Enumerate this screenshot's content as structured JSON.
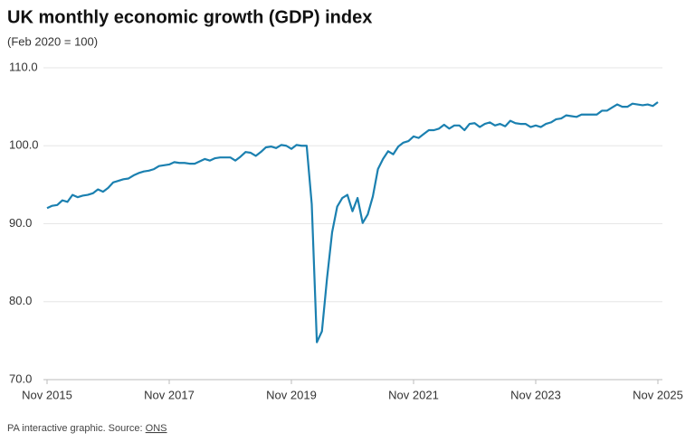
{
  "chart_data": {
    "type": "line",
    "title": "UK monthly economic growth (GDP) index",
    "subtitle": "(Feb 2020 = 100)",
    "source": {
      "text": "PA interactive graphic. Source:",
      "link": "ONS"
    },
    "x": [
      "2015-11",
      "2015-12",
      "2016-01",
      "2016-02",
      "2016-03",
      "2016-04",
      "2016-05",
      "2016-06",
      "2016-07",
      "2016-08",
      "2016-09",
      "2016-10",
      "2016-11",
      "2016-12",
      "2017-01",
      "2017-02",
      "2017-03",
      "2017-04",
      "2017-05",
      "2017-06",
      "2017-07",
      "2017-08",
      "2017-09",
      "2017-10",
      "2017-11",
      "2017-12",
      "2018-01",
      "2018-02",
      "2018-03",
      "2018-04",
      "2018-05",
      "2018-06",
      "2018-07",
      "2018-08",
      "2018-09",
      "2018-10",
      "2018-11",
      "2018-12",
      "2019-01",
      "2019-02",
      "2019-03",
      "2019-04",
      "2019-05",
      "2019-06",
      "2019-07",
      "2019-08",
      "2019-09",
      "2019-10",
      "2019-11",
      "2019-12",
      "2020-01",
      "2020-02",
      "2020-03",
      "2020-04",
      "2020-05",
      "2020-06",
      "2020-07",
      "2020-08",
      "2020-09",
      "2020-10",
      "2020-11",
      "2020-12",
      "2021-01",
      "2021-02",
      "2021-03",
      "2021-04",
      "2021-05",
      "2021-06",
      "2021-07",
      "2021-08",
      "2021-09",
      "2021-10",
      "2021-11",
      "2021-12",
      "2022-01",
      "2022-02",
      "2022-03",
      "2022-04",
      "2022-05",
      "2022-06",
      "2022-07",
      "2022-08",
      "2022-09",
      "2022-10",
      "2022-11",
      "2022-12",
      "2023-01",
      "2023-02",
      "2023-03",
      "2023-04",
      "2023-05",
      "2023-06",
      "2023-07",
      "2023-08",
      "2023-09",
      "2023-10",
      "2023-11",
      "2023-12",
      "2024-01",
      "2024-02",
      "2024-03",
      "2024-04",
      "2024-05",
      "2024-06",
      "2024-07",
      "2024-08",
      "2024-09",
      "2024-10",
      "2024-11",
      "2024-12",
      "2025-01",
      "2025-02",
      "2025-03",
      "2025-04",
      "2025-05",
      "2025-06",
      "2025-07",
      "2025-08",
      "2025-09",
      "2025-10",
      "2025-11"
    ],
    "series": [
      {
        "name": "GDP index",
        "color": "#1b80b0",
        "values": [
          92.0,
          92.3,
          92.4,
          93.0,
          92.8,
          93.7,
          93.4,
          93.6,
          93.7,
          93.9,
          94.4,
          94.1,
          94.6,
          95.3,
          95.5,
          95.7,
          95.8,
          96.2,
          96.5,
          96.7,
          96.8,
          97.0,
          97.4,
          97.5,
          97.6,
          97.9,
          97.8,
          97.8,
          97.7,
          97.7,
          98.0,
          98.3,
          98.1,
          98.4,
          98.5,
          98.5,
          98.5,
          98.1,
          98.6,
          99.2,
          99.1,
          98.7,
          99.2,
          99.8,
          99.9,
          99.7,
          100.1,
          100.0,
          99.6,
          100.1,
          100.0,
          100.0,
          92.5,
          74.8,
          76.2,
          83.0,
          88.9,
          92.2,
          93.3,
          93.7,
          91.6,
          93.3,
          90.1,
          91.2,
          93.5,
          97.0,
          98.3,
          99.3,
          98.9,
          99.9,
          100.4,
          100.6,
          101.2,
          101.0,
          101.5,
          102.0,
          102.0,
          102.2,
          102.7,
          102.2,
          102.6,
          102.6,
          102.0,
          102.8,
          102.9,
          102.4,
          102.8,
          103.0,
          102.6,
          102.8,
          102.5,
          103.2,
          102.9,
          102.8,
          102.8,
          102.4,
          102.6,
          102.4,
          102.8,
          103.0,
          103.4,
          103.5,
          103.9,
          103.8,
          103.7,
          104.0,
          104.0,
          104.0,
          104.0,
          104.5,
          104.5,
          104.9,
          105.3,
          105.0,
          105.0,
          105.4,
          105.3,
          105.2,
          105.3,
          105.1,
          105.6
        ]
      }
    ],
    "xlim": [
      "2015-11",
      "2025-11"
    ],
    "xticks": [
      {
        "value": "2015-11",
        "label": "Nov 2015"
      },
      {
        "value": "2017-11",
        "label": "Nov 2017"
      },
      {
        "value": "2019-11",
        "label": "Nov 2019"
      },
      {
        "value": "2021-11",
        "label": "Nov 2021"
      },
      {
        "value": "2023-11",
        "label": "Nov 2023"
      },
      {
        "value": "2025-11",
        "label": "Nov 2025"
      }
    ],
    "ylim": [
      70,
      110
    ],
    "yticks": [
      {
        "value": 70,
        "label": "70.0"
      },
      {
        "value": 80,
        "label": "80.0"
      },
      {
        "value": 90,
        "label": "90.0"
      },
      {
        "value": 100,
        "label": "100.0"
      },
      {
        "value": 110,
        "label": "110.0"
      }
    ],
    "grid": true
  }
}
